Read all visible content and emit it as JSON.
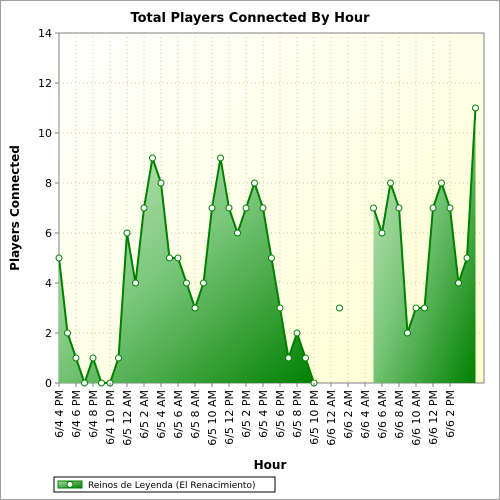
{
  "chart_data": {
    "type": "area",
    "title": "Total Players Connected By Hour",
    "xlabel": "Hour",
    "ylabel": "Players Connected",
    "ylim": [
      0,
      14
    ],
    "y_ticks": [
      0,
      2,
      4,
      6,
      8,
      10,
      12,
      14
    ],
    "grid": true,
    "legend_position": "bottom-left",
    "tick_labels": [
      "6/4 4 PM",
      "6/4 6 PM",
      "6/4 8 PM",
      "6/4 10 PM",
      "6/5 12 AM",
      "6/5 2 AM",
      "6/5 4 AM",
      "6/5 6 AM",
      "6/5 8 AM",
      "6/5 10 AM",
      "6/5 12 PM",
      "6/5 2 PM",
      "6/5 4 PM",
      "6/5 6 PM",
      "6/5 8 PM",
      "6/5 10 PM",
      "6/6 12 AM",
      "6/6 2 AM",
      "6/6 4 AM",
      "6/6 6 AM",
      "6/6 8 AM",
      "6/6 10 AM",
      "6/6 12 PM",
      "6/6 2 PM"
    ],
    "series": [
      {
        "name": "Reinos de Leyenda (El Renacimiento)",
        "color": "#008000",
        "values": [
          5,
          2,
          1,
          0,
          1,
          0,
          0,
          1,
          6,
          4,
          7,
          9,
          8,
          5,
          5,
          4,
          3,
          4,
          7,
          9,
          7,
          6,
          7,
          8,
          7,
          5,
          3,
          1,
          2,
          1,
          0,
          null,
          null,
          3,
          null,
          null,
          null,
          7,
          6,
          8,
          7,
          2,
          3,
          3,
          7,
          8,
          7,
          4,
          5,
          11
        ]
      }
    ]
  }
}
